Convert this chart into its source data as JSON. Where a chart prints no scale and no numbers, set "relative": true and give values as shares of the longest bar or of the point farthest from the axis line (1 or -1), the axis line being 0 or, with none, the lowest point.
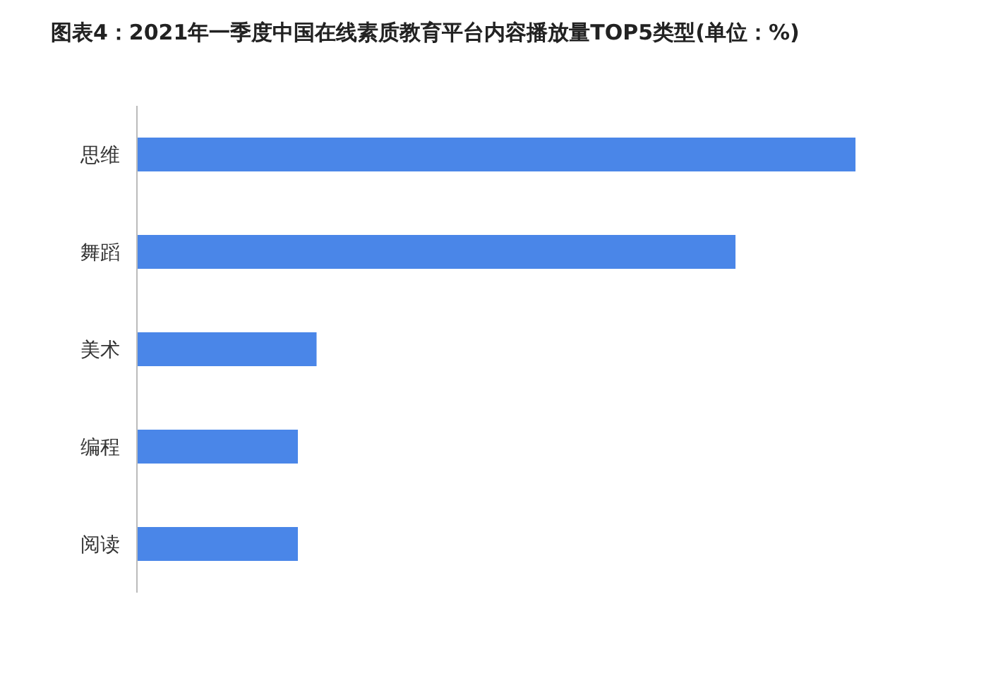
{
  "chart_data": {
    "type": "bar",
    "orientation": "horizontal",
    "relative": true,
    "title": "图表4：2021年一季度中国在线素质教育平台内容播放量TOP5类型(单位：%)",
    "categories": [
      "思维",
      "舞蹈",
      "美术",
      "编程",
      "阅读"
    ],
    "values": [
      1,
      0.833,
      0.25,
      0.224,
      0.224
    ],
    "color": "#4a86e8"
  }
}
